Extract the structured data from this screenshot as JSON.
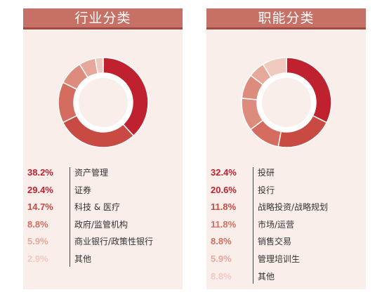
{
  "colors": [
    "#c0212f",
    "#c84a43",
    "#d46d5f",
    "#dd8b7c",
    "#e5a89a",
    "#f0c9bf"
  ],
  "pct_colors": [
    "#c0212f",
    "#c0212f",
    "#c84a43",
    "#d46d5f",
    "#e5a89a",
    "#f0c9bf",
    "#f0c9bf"
  ],
  "chart_data": [
    {
      "type": "pie",
      "title": "行业分类",
      "categories": [
        "资产管理",
        "证券",
        "科技 & 医疗",
        "政府/监管机构",
        "商业银行/政策性银行",
        "其他"
      ],
      "values": [
        38.2,
        29.4,
        14.7,
        8.8,
        5.9,
        2.9
      ],
      "labels": [
        "38.2%",
        "29.4%",
        "14.7%",
        "8.8%",
        "5.9%",
        "2.9%"
      ],
      "donut": true
    },
    {
      "type": "pie",
      "title": "职能分类",
      "categories": [
        "投研",
        "投行",
        "战略投资/战略规划",
        "市场/运营",
        "销售交易",
        "管理培训生",
        "其他"
      ],
      "values": [
        32.4,
        20.6,
        11.8,
        11.8,
        8.8,
        5.9,
        8.8
      ],
      "labels": [
        "32.4%",
        "20.6%",
        "11.8%",
        "11.8%",
        "8.8%",
        "5.9%",
        "8.8%"
      ],
      "donut": true
    }
  ]
}
